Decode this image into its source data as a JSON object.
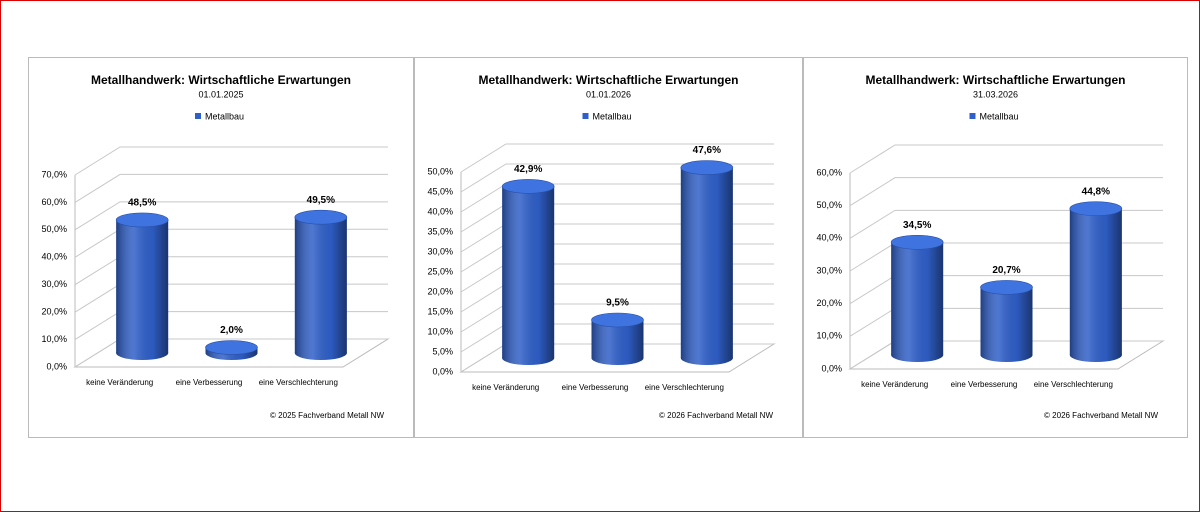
{
  "chart_data": [
    {
      "type": "bar",
      "title": "Metallhandwerk: Wirtschaftliche Erwartungen",
      "subtitle": "01.01.2025",
      "categories": [
        "keine Veränderung",
        "eine Verbesserung",
        "eine Verschlechterung"
      ],
      "series": [
        {
          "name": "Metallbau",
          "color": "#2f5fc8",
          "values": [
            48.5,
            2.0,
            49.5
          ],
          "value_labels": [
            "48,5%",
            "2,0%",
            "49,5%"
          ]
        }
      ],
      "ylim": [
        0,
        70
      ],
      "yticks": [
        {
          "value": 0,
          "label": "0,0%"
        },
        {
          "value": 10,
          "label": "10,0%"
        },
        {
          "value": 20,
          "label": "20,0%"
        },
        {
          "value": 30,
          "label": "30,0%"
        },
        {
          "value": 40,
          "label": "40,0%"
        },
        {
          "value": 50,
          "label": "50,0%"
        },
        {
          "value": 60,
          "label": "60,0%"
        },
        {
          "value": 70,
          "label": "70,0%"
        }
      ],
      "grid": true,
      "legend": "top",
      "annotation": "© 2025 Fachverband Metall NW"
    },
    {
      "type": "bar",
      "title": "Metallhandwerk: Wirtschaftliche Erwartungen",
      "subtitle": "01.01.2026",
      "categories": [
        "keine Veränderung",
        "eine Verbesserung",
        "eine Verschlechterung"
      ],
      "series": [
        {
          "name": "Metallbau",
          "color": "#2f5fc8",
          "values": [
            42.9,
            9.5,
            47.6
          ],
          "value_labels": [
            "42,9%",
            "9,5%",
            "47,6%"
          ]
        }
      ],
      "ylim": [
        0,
        50
      ],
      "yticks": [
        {
          "value": 0,
          "label": "0,0%"
        },
        {
          "value": 5,
          "label": "5,0%"
        },
        {
          "value": 10,
          "label": "10,0%"
        },
        {
          "value": 15,
          "label": "15,0%"
        },
        {
          "value": 20,
          "label": "20,0%"
        },
        {
          "value": 25,
          "label": "25,0%"
        },
        {
          "value": 30,
          "label": "30,0%"
        },
        {
          "value": 35,
          "label": "35,0%"
        },
        {
          "value": 40,
          "label": "40,0%"
        },
        {
          "value": 45,
          "label": "45,0%"
        },
        {
          "value": 50,
          "label": "50,0%"
        }
      ],
      "grid": true,
      "legend": "top",
      "annotation": "© 2026 Fachverband Metall NW"
    },
    {
      "type": "bar",
      "title": "Metallhandwerk: Wirtschaftliche Erwartungen",
      "subtitle": "31.03.2026",
      "categories": [
        "keine Veränderung",
        "eine Verbesserung",
        "eine Verschlechterung"
      ],
      "series": [
        {
          "name": "Metallbau",
          "color": "#2f5fc8",
          "values": [
            34.5,
            20.7,
            44.8
          ],
          "value_labels": [
            "34,5%",
            "20,7%",
            "44,8%"
          ]
        }
      ],
      "ylim": [
        0,
        60
      ],
      "yticks": [
        {
          "value": 0,
          "label": "0,0%"
        },
        {
          "value": 10,
          "label": "10,0%"
        },
        {
          "value": 20,
          "label": "20,0%"
        },
        {
          "value": 30,
          "label": "30,0%"
        },
        {
          "value": 40,
          "label": "40,0%"
        },
        {
          "value": 50,
          "label": "50,0%"
        },
        {
          "value": 60,
          "label": "60,0%"
        }
      ],
      "grid": true,
      "legend": "top",
      "annotation": "© 2026 Fachverband Metall NW"
    }
  ]
}
